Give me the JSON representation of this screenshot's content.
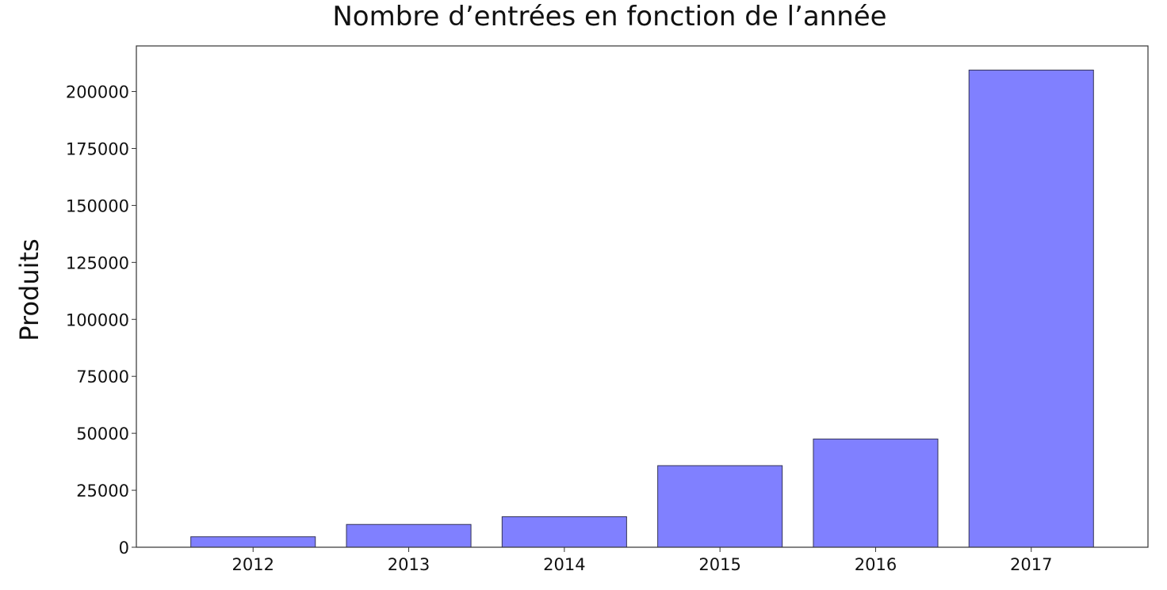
{
  "chart_data": {
    "type": "bar",
    "title": "Nombre d’entrées en fonction de l’année",
    "xlabel": "",
    "ylabel": "Produits",
    "categories": [
      "2012",
      "2013",
      "2014",
      "2015",
      "2016",
      "2017"
    ],
    "values": [
      4600,
      10000,
      13400,
      35800,
      47500,
      209400
    ],
    "ylim": [
      0,
      220000
    ],
    "yticks": [
      0,
      25000,
      50000,
      75000,
      100000,
      125000,
      150000,
      175000,
      200000
    ],
    "ytick_labels": [
      "0",
      "25000",
      "50000",
      "75000",
      "100000",
      "125000",
      "150000",
      "175000",
      "200000"
    ],
    "grid": false,
    "legend": "none",
    "colors": {
      "bar_fill": "#8080ff",
      "bar_edge": "#333355",
      "axis": "#333333",
      "text": "#111111"
    }
  }
}
